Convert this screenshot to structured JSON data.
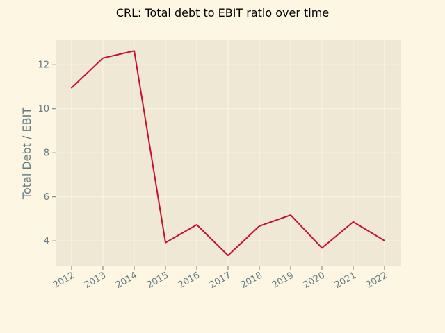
{
  "chart_data": {
    "type": "line",
    "title": "CRL: Total debt to EBIT ratio over time",
    "xlabel": "",
    "ylabel": "Total Debt / EBIT",
    "x": [
      "2012",
      "2013",
      "2014",
      "2015",
      "2016",
      "2017",
      "2018",
      "2019",
      "2020",
      "2021",
      "2022"
    ],
    "series": [
      {
        "values": [
          10.95,
          12.3,
          12.63,
          3.92,
          4.73,
          3.34,
          4.67,
          5.17,
          3.68,
          4.86,
          4.01
        ]
      }
    ],
    "ylim": [
      2.84,
      13.11
    ],
    "yticks": [
      4,
      6,
      8,
      10,
      12
    ],
    "grid": true,
    "colors": {
      "line": "#c8102e",
      "plot_background": "#efe8d5",
      "figure_background": "#fdf6e3",
      "grid": "#fdf6e3",
      "text": "#657b83"
    }
  }
}
